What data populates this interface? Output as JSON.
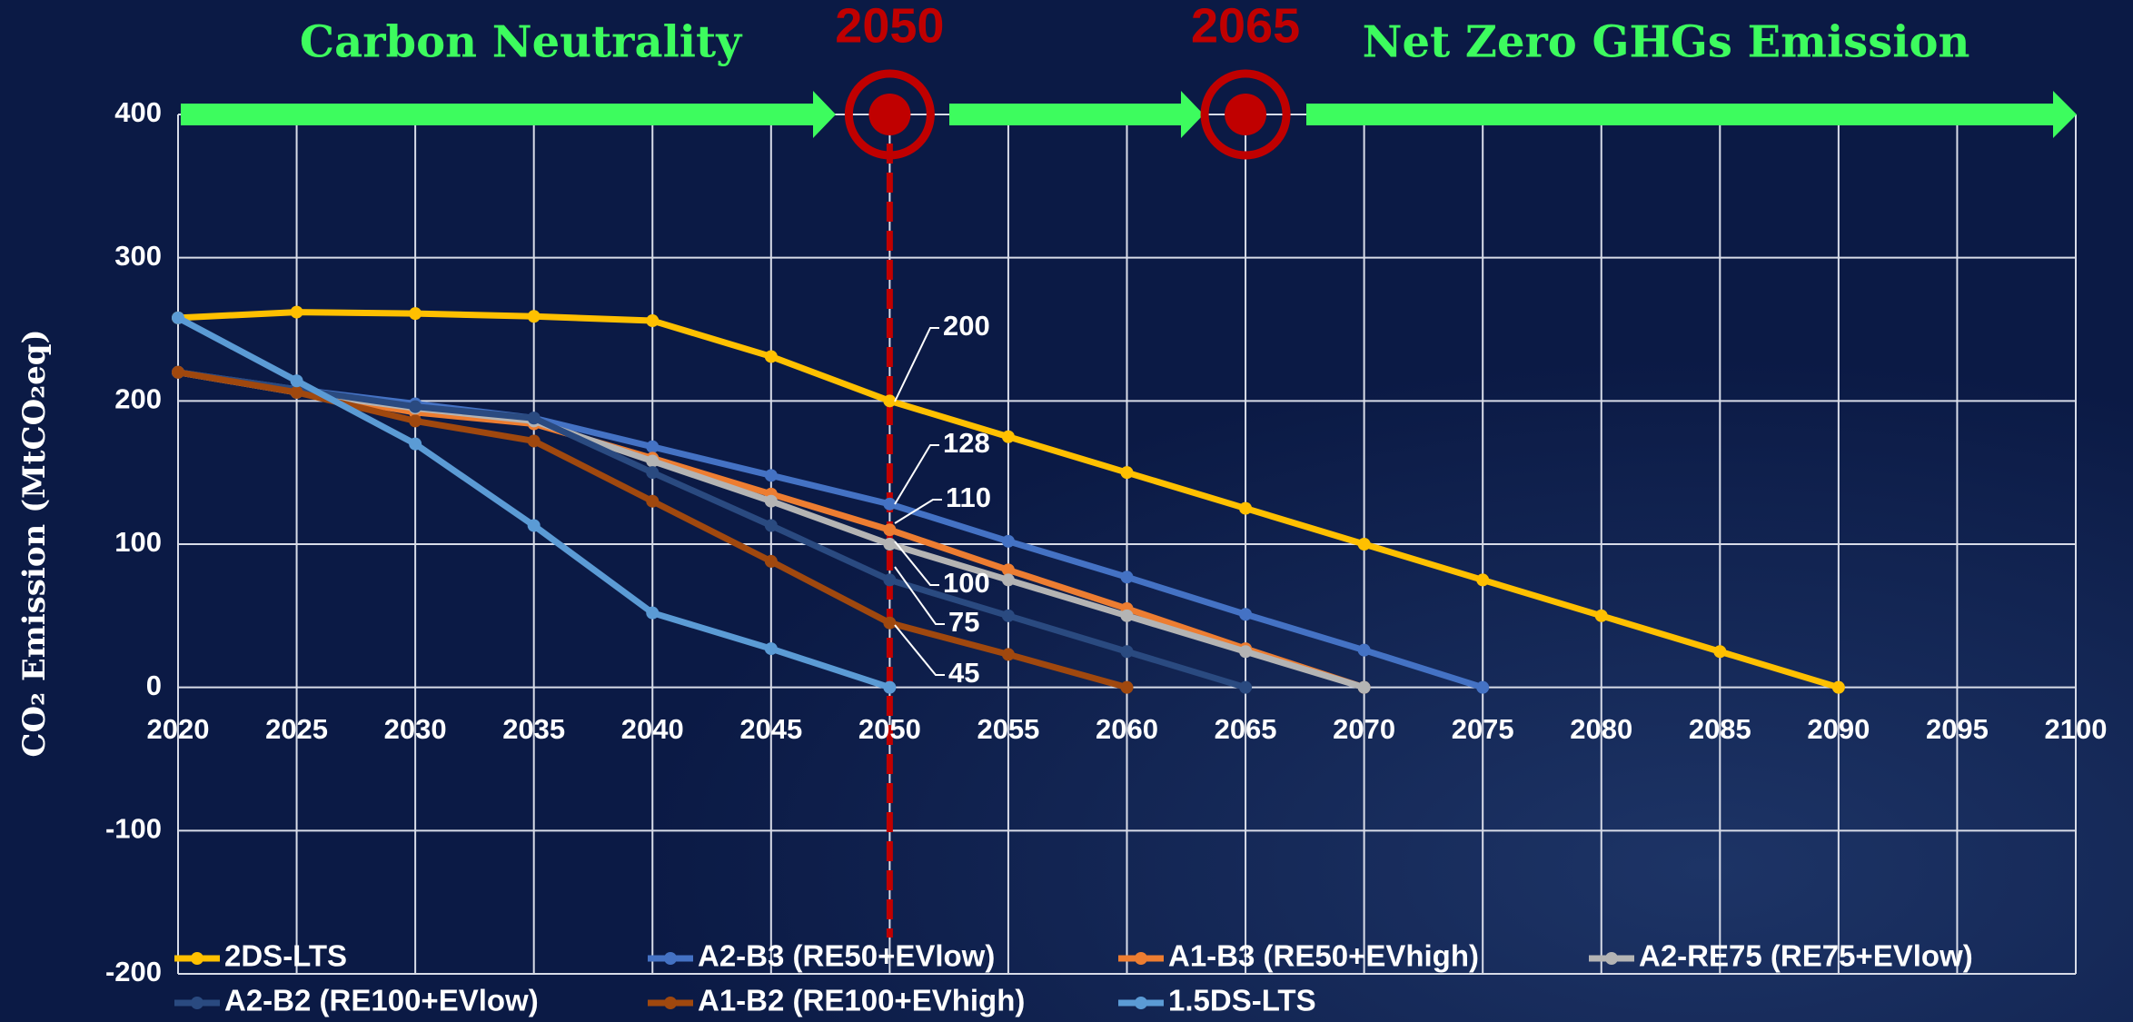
{
  "chart_data": {
    "type": "line",
    "phases": [
      "Carbon Neutrality",
      "Net Zero GHGs Emission"
    ],
    "milestones": [
      2050,
      2065
    ],
    "y_label": "CO₂ Emission (MtCO₂eq)",
    "x": [
      2020,
      2025,
      2030,
      2035,
      2040,
      2045,
      2050,
      2055,
      2060,
      2065,
      2070,
      2075,
      2080,
      2085,
      2090
    ],
    "series": [
      {
        "name": "2DS-LTS",
        "color": "#ffc000",
        "values": [
          258,
          262,
          261,
          259,
          256,
          231,
          200,
          175,
          150,
          125,
          100,
          75,
          50,
          25,
          0
        ]
      },
      {
        "name": "A2-B3 (RE50+EVlow)",
        "color": "#4472c4",
        "values": [
          220,
          208,
          198,
          188,
          168,
          148,
          128,
          102,
          77,
          51,
          26,
          0,
          null,
          null,
          null
        ]
      },
      {
        "name": "A1-B3 (RE50+EVhigh)",
        "color": "#ed7d31",
        "values": [
          220,
          206,
          192,
          184,
          160,
          135,
          110,
          82,
          55,
          27,
          0,
          null,
          null,
          null,
          null
        ]
      },
      {
        "name": "A2-RE75 (RE75+EVlow)",
        "color": "#b4b4b4",
        "values": [
          220,
          206,
          195,
          186,
          158,
          130,
          100,
          75,
          50,
          25,
          0,
          null,
          null,
          null,
          null
        ]
      },
      {
        "name": "A2-B2 (RE100+EVlow)",
        "color": "#2a4a80",
        "values": [
          220,
          208,
          196,
          188,
          150,
          113,
          75,
          50,
          25,
          0,
          null,
          null,
          null,
          null,
          null
        ]
      },
      {
        "name": "A1-B2 (RE100+EVhigh)",
        "color": "#a0480e",
        "values": [
          220,
          206,
          186,
          172,
          130,
          88,
          45,
          23,
          0,
          null,
          null,
          null,
          null,
          null,
          null
        ]
      },
      {
        "name": "1.5DS-LTS",
        "color": "#5b9bd5",
        "values": [
          258,
          214,
          170,
          113,
          52,
          27,
          0,
          null,
          null,
          null,
          null,
          null,
          null,
          null,
          null
        ]
      }
    ],
    "annotations": [
      "200",
      "128",
      "110",
      "100",
      "75",
      "45"
    ],
    "xlim": [
      2020,
      2100
    ],
    "xticks": [
      2020,
      2025,
      2030,
      2035,
      2040,
      2045,
      2050,
      2055,
      2060,
      2065,
      2070,
      2075,
      2080,
      2085,
      2090,
      2095,
      2100
    ],
    "ylim": [
      -200,
      400
    ],
    "yticks": [
      -200,
      -100,
      0,
      100,
      200,
      300,
      400
    ],
    "grid": true
  }
}
